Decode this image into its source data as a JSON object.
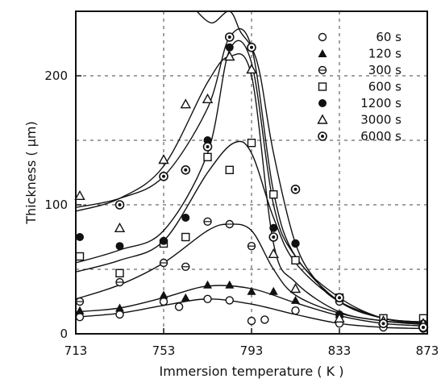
{
  "chart_data": {
    "type": "scatter",
    "title": "",
    "xlabel": "Immersion  temperature  ( K )",
    "ylabel": "Thickness  ( μm)",
    "xlim": [
      713,
      873
    ],
    "ylim": [
      0,
      250
    ],
    "xticks": [
      "713",
      "753",
      "793",
      "833",
      "873"
    ],
    "yticks": [
      "0",
      "100",
      "200"
    ],
    "grid": "dashed",
    "legend_position": "top-right",
    "series": [
      {
        "name": "60 s",
        "marker": "circle-open",
        "points": [
          [
            713,
            13
          ],
          [
            733,
            15
          ],
          [
            753,
            25
          ],
          [
            760,
            21
          ],
          [
            773,
            27
          ],
          [
            783,
            26
          ],
          [
            793,
            10
          ],
          [
            799,
            11
          ],
          [
            813,
            18
          ],
          [
            833,
            8
          ],
          [
            853,
            5
          ],
          [
            873,
            4
          ]
        ],
        "curve": [
          [
            713,
            13
          ],
          [
            733,
            16
          ],
          [
            753,
            22
          ],
          [
            773,
            27
          ],
          [
            793,
            23
          ],
          [
            813,
            15
          ],
          [
            833,
            8
          ],
          [
            853,
            5
          ],
          [
            873,
            4
          ]
        ]
      },
      {
        "name": "120 s",
        "marker": "triangle-filled",
        "points": [
          [
            713,
            18
          ],
          [
            733,
            20
          ],
          [
            753,
            30
          ],
          [
            763,
            28
          ],
          [
            773,
            38
          ],
          [
            783,
            38
          ],
          [
            793,
            33
          ],
          [
            803,
            33
          ],
          [
            813,
            26
          ],
          [
            833,
            15
          ],
          [
            853,
            8
          ],
          [
            873,
            6
          ]
        ],
        "curve": [
          [
            713,
            17
          ],
          [
            733,
            20
          ],
          [
            753,
            28
          ],
          [
            773,
            37
          ],
          [
            793,
            35
          ],
          [
            813,
            24
          ],
          [
            833,
            14
          ],
          [
            853,
            8
          ],
          [
            873,
            6
          ]
        ]
      },
      {
        "name": "300 s",
        "marker": "circle-dot",
        "points": [
          [
            713,
            25
          ],
          [
            733,
            40
          ],
          [
            753,
            55
          ],
          [
            763,
            52
          ],
          [
            773,
            87
          ],
          [
            783,
            85
          ],
          [
            793,
            68
          ],
          [
            813,
            70
          ],
          [
            833,
            25
          ],
          [
            853,
            10
          ],
          [
            873,
            8
          ]
        ],
        "curve": [
          [
            713,
            27
          ],
          [
            733,
            38
          ],
          [
            753,
            55
          ],
          [
            773,
            80
          ],
          [
            783,
            85
          ],
          [
            793,
            80
          ],
          [
            803,
            50
          ],
          [
            813,
            30
          ],
          [
            833,
            16
          ],
          [
            853,
            10
          ],
          [
            873,
            7
          ]
        ]
      },
      {
        "name": "600 s",
        "marker": "square-open",
        "points": [
          [
            713,
            60
          ],
          [
            733,
            47
          ],
          [
            753,
            70
          ],
          [
            763,
            75
          ],
          [
            773,
            137
          ],
          [
            783,
            127
          ],
          [
            793,
            148
          ],
          [
            803,
            108
          ],
          [
            813,
            57
          ],
          [
            833,
            28
          ],
          [
            853,
            12
          ],
          [
            873,
            12
          ]
        ],
        "curve": [
          [
            713,
            48
          ],
          [
            733,
            57
          ],
          [
            753,
            72
          ],
          [
            773,
            125
          ],
          [
            785,
            148
          ],
          [
            793,
            140
          ],
          [
            803,
            90
          ],
          [
            813,
            55
          ],
          [
            833,
            25
          ],
          [
            853,
            12
          ],
          [
            873,
            9
          ]
        ]
      },
      {
        "name": "1200 s",
        "marker": "circle-filled",
        "points": [
          [
            713,
            75
          ],
          [
            733,
            68
          ],
          [
            753,
            72
          ],
          [
            763,
            90
          ],
          [
            773,
            150
          ],
          [
            783,
            222
          ],
          [
            803,
            82
          ],
          [
            813,
            70
          ],
          [
            833,
            15
          ],
          [
            853,
            8
          ],
          [
            873,
            8
          ]
        ],
        "curve": [
          [
            713,
            55
          ],
          [
            733,
            65
          ],
          [
            753,
            80
          ],
          [
            773,
            140
          ],
          [
            783,
            220
          ],
          [
            793,
            210
          ],
          [
            803,
            100
          ],
          [
            813,
            60
          ],
          [
            833,
            25
          ],
          [
            853,
            12
          ],
          [
            873,
            9
          ]
        ]
      },
      {
        "name": "3000 s",
        "marker": "triangle-open",
        "points": [
          [
            713,
            107
          ],
          [
            733,
            82
          ],
          [
            753,
            135
          ],
          [
            763,
            178
          ],
          [
            773,
            182
          ],
          [
            783,
            215
          ],
          [
            793,
            205
          ],
          [
            803,
            62
          ],
          [
            813,
            35
          ],
          [
            833,
            12
          ],
          [
            853,
            10
          ],
          [
            873,
            8
          ]
        ],
        "curve": [
          [
            713,
            95
          ],
          [
            733,
            105
          ],
          [
            753,
            130
          ],
          [
            773,
            195
          ],
          [
            783,
            215
          ],
          [
            793,
            200
          ],
          [
            803,
            70
          ],
          [
            813,
            40
          ],
          [
            833,
            17
          ],
          [
            853,
            10
          ],
          [
            873,
            7
          ]
        ]
      },
      {
        "name": "6000 s",
        "marker": "circle-center",
        "points": [
          [
            733,
            100
          ],
          [
            753,
            122
          ],
          [
            763,
            127
          ],
          [
            773,
            145
          ],
          [
            783,
            230
          ],
          [
            793,
            222
          ],
          [
            803,
            75
          ],
          [
            813,
            112
          ],
          [
            833,
            28
          ],
          [
            853,
            8
          ],
          [
            873,
            5
          ]
        ],
        "curve": [
          [
            713,
            98
          ],
          [
            733,
            105
          ],
          [
            753,
            122
          ],
          [
            773,
            175
          ],
          [
            783,
            230
          ],
          [
            793,
            222
          ],
          [
            803,
            110
          ],
          [
            813,
            60
          ],
          [
            833,
            28
          ],
          [
            853,
            12
          ],
          [
            873,
            8
          ]
        ]
      }
    ],
    "peak_curve": [
      [
        768,
        250
      ],
      [
        775,
        241
      ],
      [
        783,
        250
      ],
      [
        788,
        234
      ],
      [
        793,
        222
      ],
      [
        797,
        200
      ],
      [
        803,
        140
      ],
      [
        813,
        70
      ],
      [
        823,
        40
      ],
      [
        833,
        25
      ],
      [
        853,
        12
      ],
      [
        873,
        8
      ]
    ]
  }
}
